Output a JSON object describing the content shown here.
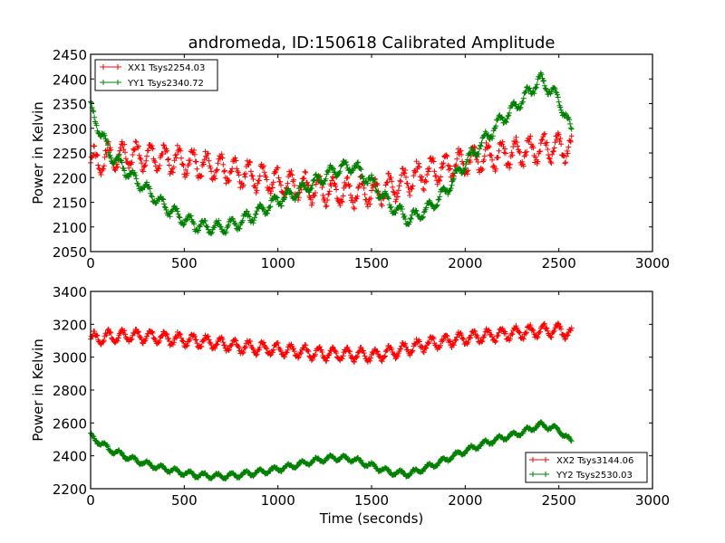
{
  "chart_data": [
    {
      "type": "scatter",
      "title": "andromeda, ID:150618 Calibrated Amplitude",
      "xlabel": "",
      "ylabel": "Power in Kelvin",
      "xlim": [
        0,
        3000
      ],
      "ylim": [
        2050,
        2450
      ],
      "xticks": [
        "0",
        "500",
        "1000",
        "1500",
        "2000",
        "2500",
        "3000"
      ],
      "yticks": [
        "2050",
        "2100",
        "2150",
        "2200",
        "2250",
        "2300",
        "2350",
        "2400",
        "2450"
      ],
      "legend_position": "top-left",
      "x": [
        0,
        100,
        200,
        300,
        400,
        500,
        600,
        700,
        800,
        900,
        1000,
        1100,
        1200,
        1300,
        1400,
        1500,
        1600,
        1700,
        1800,
        1900,
        2000,
        2100,
        2200,
        2300,
        2400,
        2500,
        2570
      ],
      "series": [
        {
          "name": "XX1 Tsys2254.03",
          "color": "#ff0000",
          "oscillation_amplitude": 25,
          "values": [
            2230,
            2240,
            2245,
            2242,
            2238,
            2232,
            2225,
            2218,
            2210,
            2200,
            2190,
            2183,
            2176,
            2172,
            2168,
            2170,
            2180,
            2195,
            2210,
            2222,
            2232,
            2240,
            2248,
            2252,
            2258,
            2262,
            2258
          ]
        },
        {
          "name": "YY1 Tsys2340.72",
          "color": "#008000",
          "oscillation_amplitude": 12,
          "values": [
            2340,
            2250,
            2210,
            2175,
            2140,
            2115,
            2100,
            2098,
            2110,
            2130,
            2155,
            2170,
            2190,
            2215,
            2225,
            2190,
            2145,
            2115,
            2135,
            2175,
            2230,
            2275,
            2320,
            2355,
            2400,
            2360,
            2290
          ]
        }
      ]
    },
    {
      "type": "scatter",
      "title": "",
      "xlabel": "Time (seconds)",
      "ylabel": "Power in Kelvin",
      "xlim": [
        0,
        3000
      ],
      "ylim": [
        2200,
        3400
      ],
      "xticks": [
        "0",
        "500",
        "1000",
        "1500",
        "2000",
        "2500",
        "3000"
      ],
      "yticks": [
        "2200",
        "2400",
        "2600",
        "2800",
        "3000",
        "3200",
        "3400"
      ],
      "legend_position": "lower-right",
      "x": [
        0,
        100,
        200,
        300,
        400,
        500,
        600,
        700,
        800,
        900,
        1000,
        1100,
        1200,
        1300,
        1400,
        1500,
        1600,
        1700,
        1800,
        1900,
        2000,
        2100,
        2200,
        2300,
        2400,
        2500,
        2570
      ],
      "series": [
        {
          "name": "XX2 Tsys3144.06",
          "color": "#ff0000",
          "oscillation_amplitude": 35,
          "values": [
            3110,
            3125,
            3130,
            3125,
            3115,
            3105,
            3095,
            3080,
            3065,
            3055,
            3045,
            3035,
            3025,
            3020,
            3015,
            3010,
            3030,
            3055,
            3080,
            3100,
            3115,
            3130,
            3140,
            3150,
            3160,
            3165,
            3140
          ]
        },
        {
          "name": "YY2 Tsys2530.03",
          "color": "#008000",
          "oscillation_amplitude": 15,
          "values": [
            2520,
            2440,
            2390,
            2350,
            2320,
            2295,
            2280,
            2275,
            2285,
            2300,
            2320,
            2345,
            2370,
            2390,
            2380,
            2340,
            2300,
            2290,
            2330,
            2380,
            2430,
            2475,
            2510,
            2540,
            2590,
            2560,
            2480
          ]
        }
      ]
    }
  ]
}
